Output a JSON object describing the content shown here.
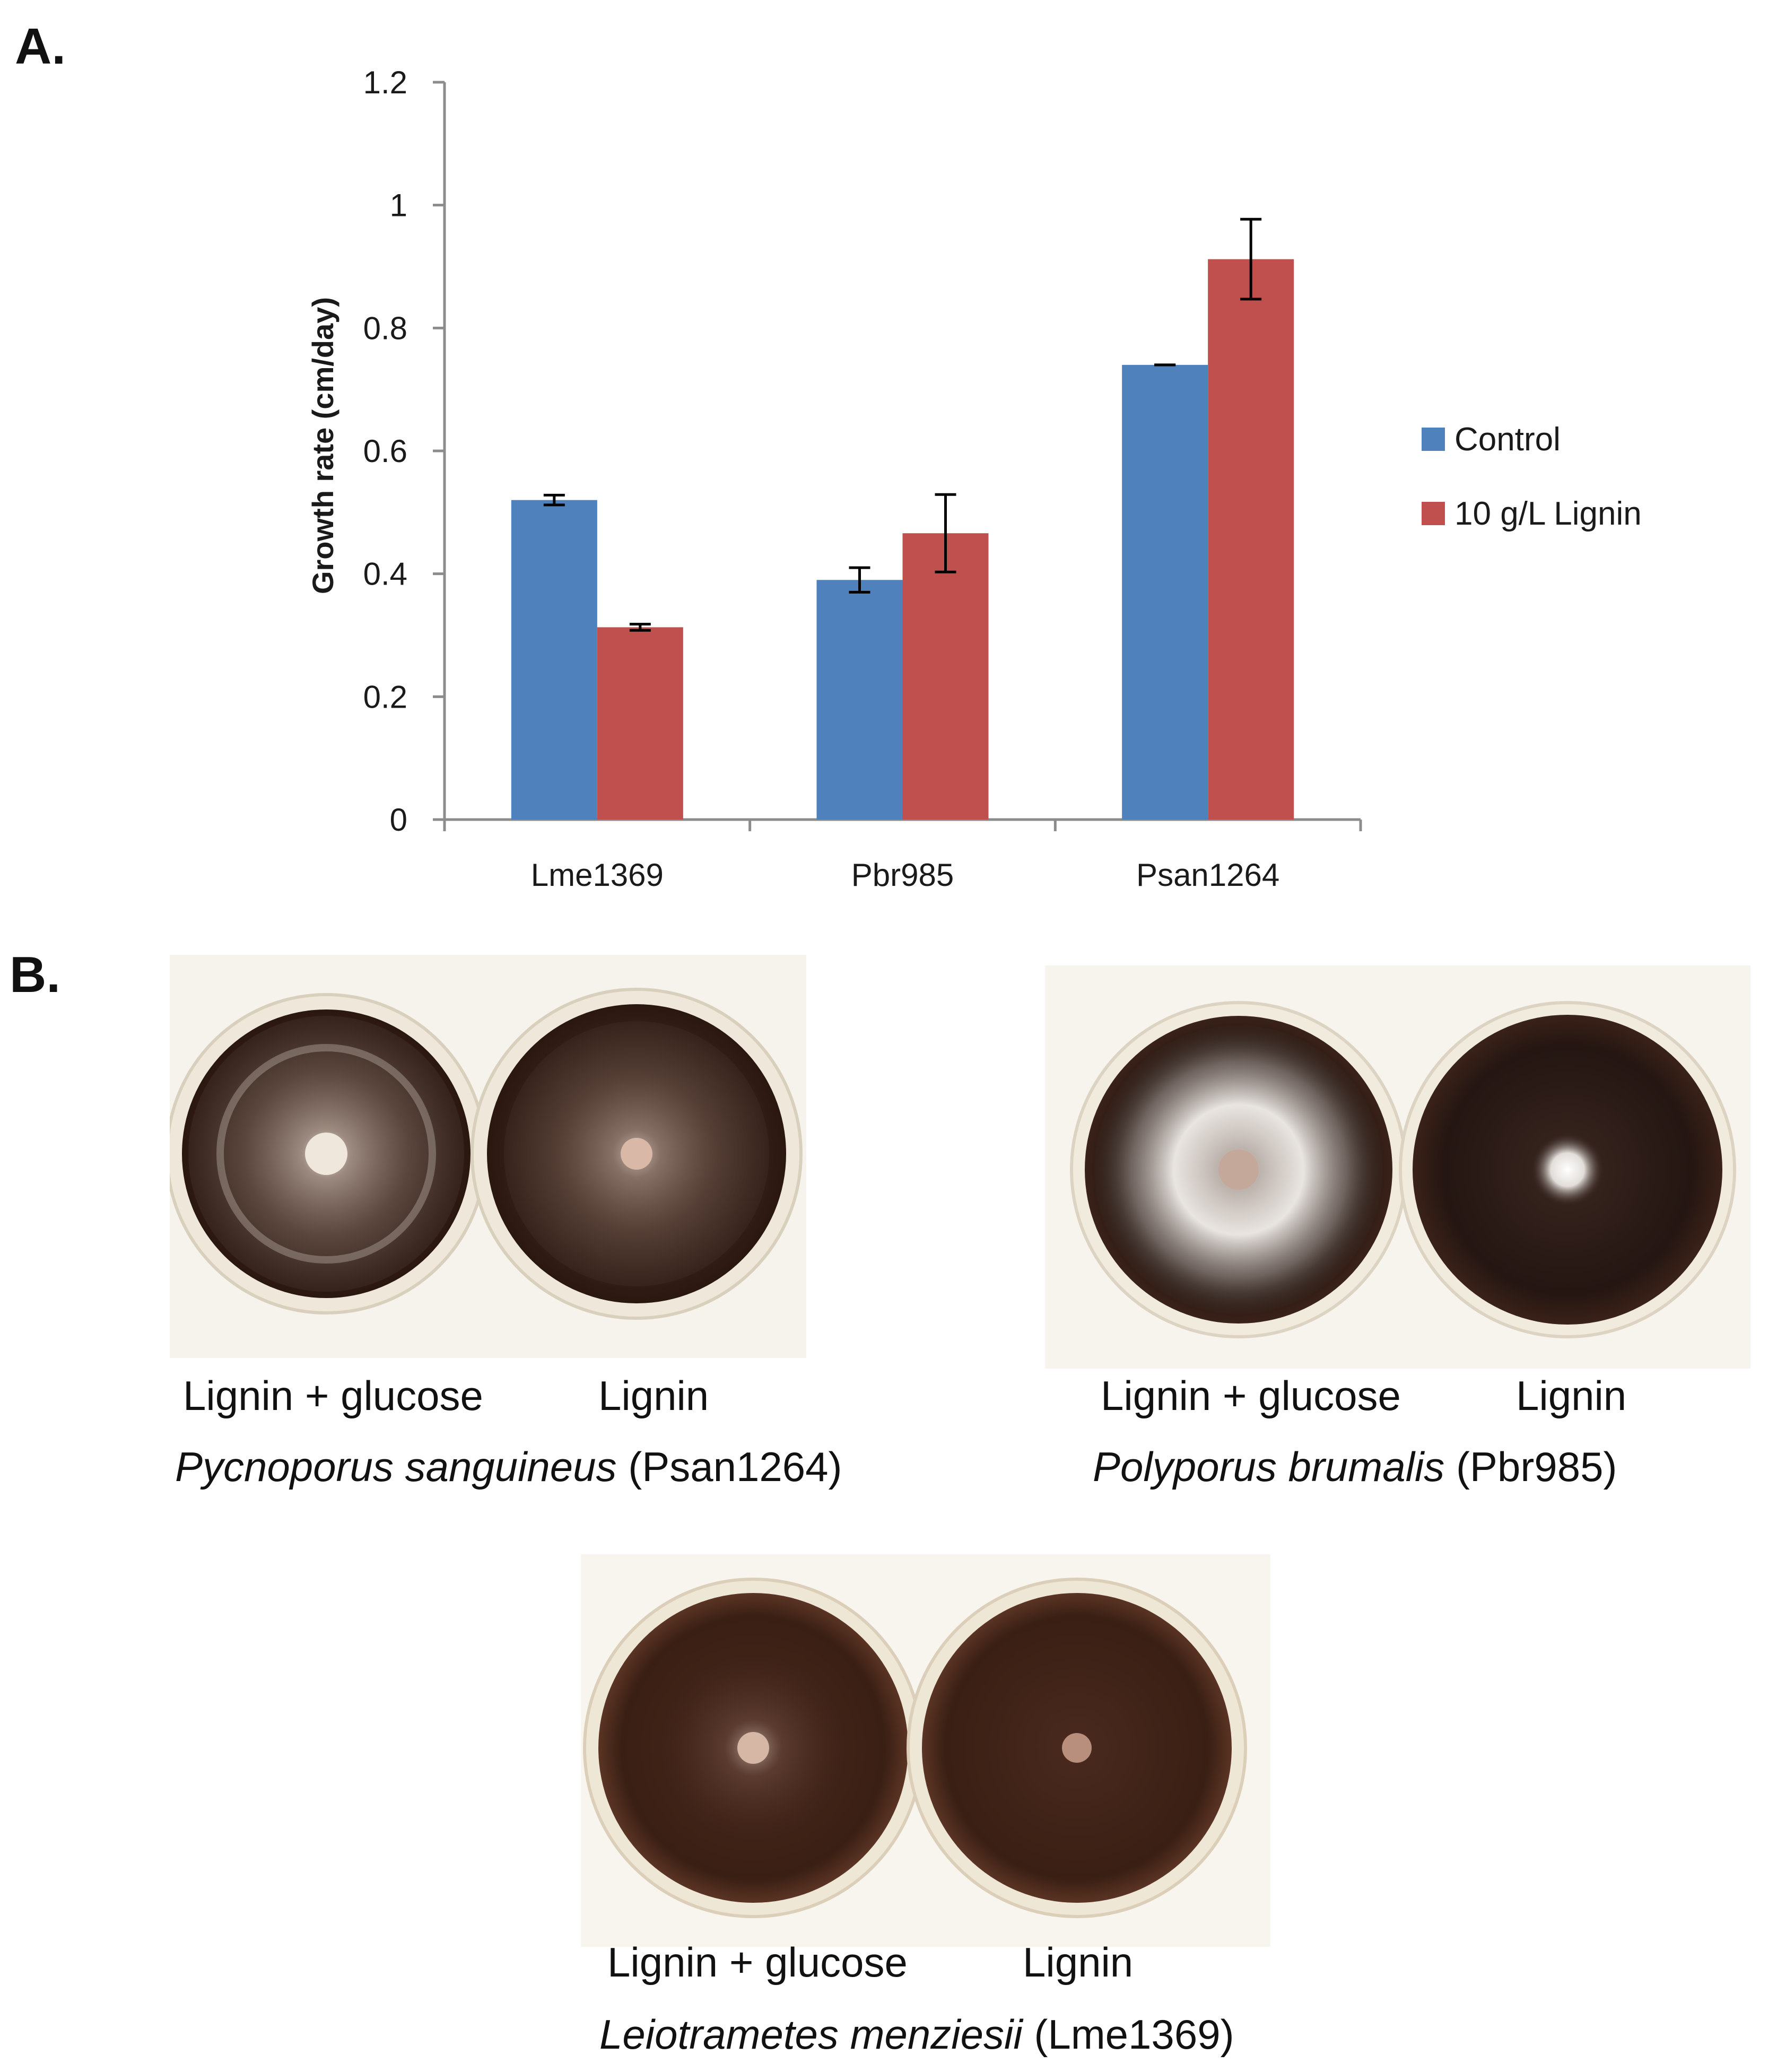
{
  "panels": {
    "a_label": "A.",
    "b_label": "B."
  },
  "chart_data": {
    "type": "bar",
    "categories": [
      "Lme1369",
      "Pbr985",
      "Psan1264"
    ],
    "series": [
      {
        "name": "Control",
        "color": "#4F81BD",
        "values": [
          0.52,
          0.39,
          0.74
        ],
        "errors": [
          0.008,
          0.02,
          0.0
        ]
      },
      {
        "name": "10 g/L Lignin",
        "color": "#C0504D",
        "values": [
          0.313,
          0.466,
          0.912
        ],
        "errors": [
          0.005,
          0.063,
          0.065
        ]
      }
    ],
    "ylabel": "Growth rate (cm/day)",
    "xlabel": "",
    "ylim": [
      0,
      1.2
    ],
    "yticks": [
      "0",
      "0.2",
      "0.4",
      "0.6",
      "0.8",
      "1",
      "1.2"
    ],
    "grid": false,
    "legend_position": "right"
  },
  "photos": [
    {
      "left_label": "Lignin + glucose",
      "right_label": "Lignin",
      "species_italic": "Pycnoporus sanguineus",
      "strain": "(Psan1264)"
    },
    {
      "left_label": "Lignin + glucose",
      "right_label": "Lignin",
      "species_italic": "Polyporus brumalis",
      "strain": "(Pbr985)"
    },
    {
      "left_label": "Lignin + glucose",
      "right_label": "Lignin",
      "species_italic": "Leiotrametes menziesii",
      "strain": "(Lme1369)"
    }
  ],
  "colors": {
    "agar_dark": "#2a1a14",
    "agar_brown": "#4a2a1c",
    "mycelium": "#e8e4de",
    "dish_rim": "#f3efe6"
  }
}
